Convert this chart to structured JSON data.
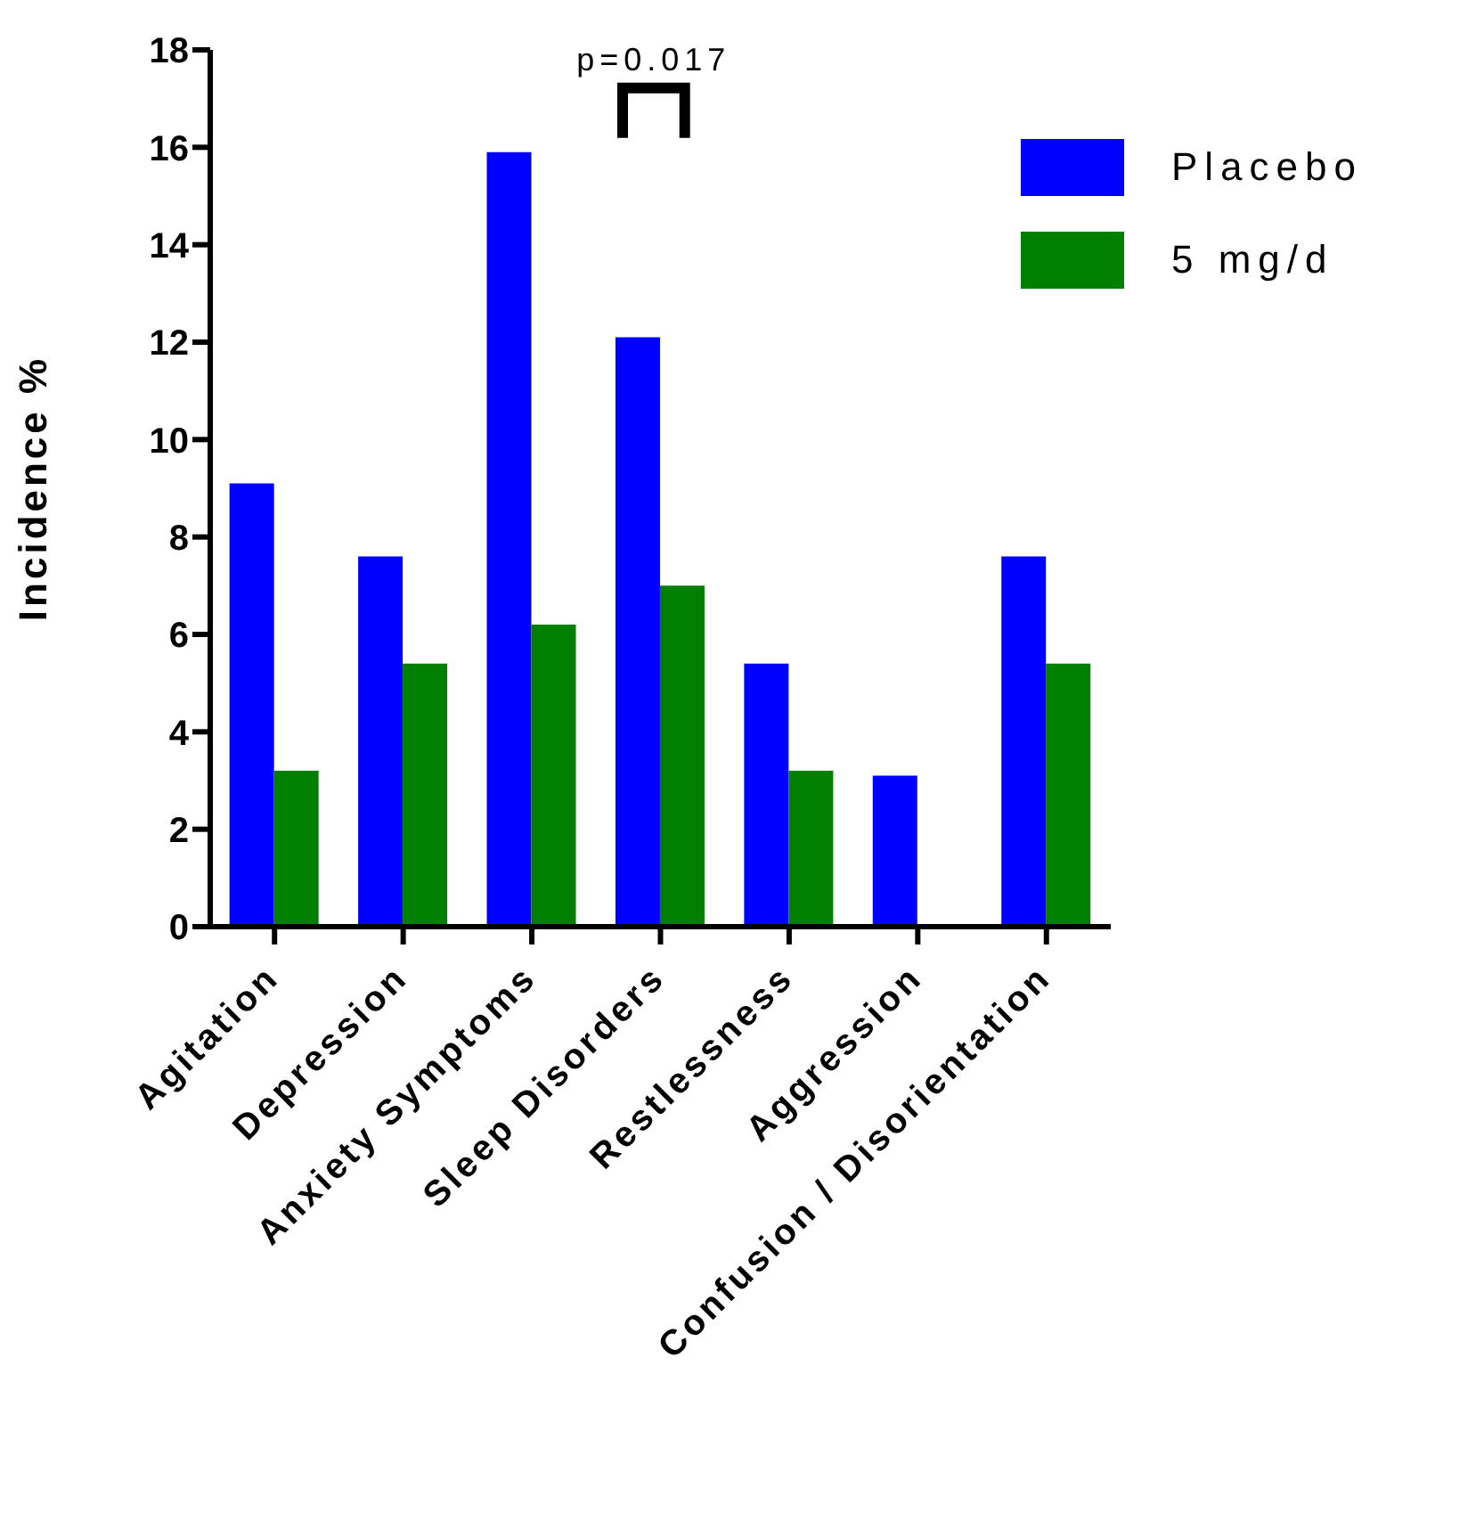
{
  "chart_data": {
    "type": "bar",
    "ylabel": "Incidence %",
    "categories": [
      "Agitation",
      "Depression",
      "Anxiety Symptoms",
      "Sleep Disorders",
      "Restlessness",
      "Aggression",
      "Confusion / Disorientation"
    ],
    "series": [
      {
        "name": "Placebo",
        "color": "#0000ff",
        "values": [
          9.1,
          7.6,
          15.9,
          12.1,
          5.4,
          3.1,
          7.6
        ]
      },
      {
        "name": "5 mg/d",
        "color": "#007f00",
        "values": [
          3.2,
          5.4,
          6.2,
          7.0,
          3.2,
          0,
          5.4
        ]
      }
    ],
    "ylim": [
      0,
      18
    ],
    "yticks": [
      0,
      2,
      4,
      6,
      8,
      10,
      12,
      14,
      16,
      18
    ],
    "legend": "top right",
    "annotations": [
      "p=0.017"
    ]
  }
}
